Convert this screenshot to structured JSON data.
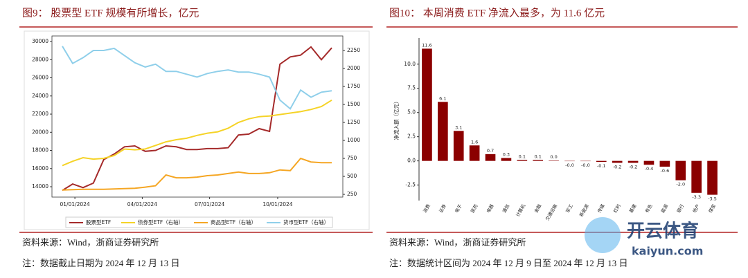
{
  "chart_data": [
    {
      "type": "line",
      "title": "图9： 股票型 ETF 规模有所增长，亿元",
      "x": [
        "12/15/2023",
        "12/29/2023",
        "01/12/2024",
        "01/26/2024",
        "02/09/2024",
        "02/23/2024",
        "03/08/2024",
        "03/22/2024",
        "04/05/2024",
        "04/19/2024",
        "05/03/2024",
        "05/17/2024",
        "05/31/2024",
        "06/14/2024",
        "06/28/2024",
        "07/12/2024",
        "07/26/2024",
        "08/09/2024",
        "08/23/2024",
        "09/06/2024",
        "09/20/2024",
        "10/04/2024",
        "10/18/2024",
        "11/01/2024",
        "11/15/2024",
        "11/29/2024",
        "12/13/2024"
      ],
      "xlim": [
        "12/01/2023",
        "12/28/2024"
      ],
      "xticks": [
        "01/01/2024",
        "04/01/2024",
        "07/01/2024",
        "10/01/2024"
      ],
      "ylim": [
        12860,
        30610
      ],
      "yticks": [
        14000,
        16000,
        18000,
        20000,
        22000,
        24000,
        26000,
        28000,
        30000
      ],
      "y2lim": [
        212,
        2452
      ],
      "y2ticks": [
        250,
        500,
        750,
        1000,
        1250,
        1500,
        1750,
        2000,
        2250
      ],
      "series": [
        {
          "name": "股票型ETF",
          "color": "#a52a2a",
          "values": [
            13600,
            14300,
            13900,
            14400,
            17000,
            17600,
            18400,
            18500,
            17900,
            18000,
            18500,
            18400,
            18100,
            18100,
            18200,
            18200,
            18300,
            19700,
            19800,
            20400,
            20100,
            27500,
            28300,
            28500,
            29400,
            28000,
            29300
          ]
        },
        {
          "name": "债券型ETF（右轴）",
          "color": "#f5d327",
          "axis": "y2",
          "values": [
            650,
            710,
            760,
            740,
            750,
            790,
            880,
            870,
            880,
            930,
            980,
            1010,
            1030,
            1070,
            1100,
            1120,
            1170,
            1250,
            1300,
            1330,
            1340,
            1360,
            1380,
            1400,
            1430,
            1470,
            1560
          ]
        },
        {
          "name": "商品型ETF（右轴）",
          "color": "#f5a623",
          "axis": "y2",
          "values": [
            310,
            315,
            320,
            320,
            320,
            325,
            330,
            335,
            350,
            370,
            520,
            480,
            480,
            490,
            510,
            520,
            540,
            560,
            540,
            540,
            550,
            590,
            580,
            750,
            700,
            690,
            690
          ]
        },
        {
          "name": "货币型ETF（右轴）",
          "color": "#8fcfea",
          "axis": "y2",
          "values": [
            2310,
            2070,
            2150,
            2250,
            2250,
            2280,
            2180,
            2080,
            2020,
            2060,
            1960,
            1960,
            1920,
            1880,
            1930,
            1960,
            1980,
            1950,
            1950,
            1920,
            1880,
            1560,
            1440,
            1700,
            1600,
            1670,
            1690
          ]
        }
      ]
    },
    {
      "type": "bar",
      "title": "图10： 本周消费 ETF 净流入最多，为 11.6 亿元",
      "y_label": "净流入额（亿元）",
      "color": "#8b0000",
      "categories": [
        "消费",
        "证券",
        "电子",
        "医药",
        "电器",
        "通信",
        "计算机",
        "金融",
        "交通运输",
        "军工",
        "新能源",
        "传媒",
        "红利",
        "基建",
        "有色",
        "能源",
        "银行",
        "地产",
        "煤炭"
      ],
      "values": [
        11.6,
        6.1,
        3.1,
        1.6,
        0.7,
        0.3,
        0.1,
        0.1,
        0.04,
        -0.03,
        -0.03,
        -0.1,
        -0.2,
        -0.2,
        -0.4,
        -0.6,
        -2.0,
        -3.3,
        -3.5
      ],
      "value_labels": [
        "11.6",
        "6.1",
        "3.1",
        "1.6",
        "0.7",
        "0.3",
        "0.1",
        "0.1",
        "0.0",
        "-0.0",
        "-0.0",
        "-0.1",
        "-0.2",
        "-0.2",
        "-0.4",
        "-0.6",
        "-2.0",
        "-3.3",
        "-3.5"
      ],
      "ylim": [
        -4.1,
        12.7
      ],
      "yticks": [
        -2.5,
        {
          "value": 0,
          "label": "0.0"
        },
        2.5,
        {
          "value": 5,
          "label": "5.0"
        },
        7.5,
        {
          "value": 10,
          "label": "10.0"
        }
      ]
    }
  ],
  "footnotes": [
    {
      "source": "资料来源：Wind，浙商证券研究所",
      "note": "注：数据截止日期为 2024 年 12 月 13 日"
    },
    {
      "source": "资料来源：Wind，浙商证券研究所",
      "note": "注：数据统计区间为 2024 年 12 月 9 日至 2024 年 12 月 13 日"
    }
  ],
  "watermark": {
    "brand": "开云体育",
    "url": "kaiyun.com"
  }
}
